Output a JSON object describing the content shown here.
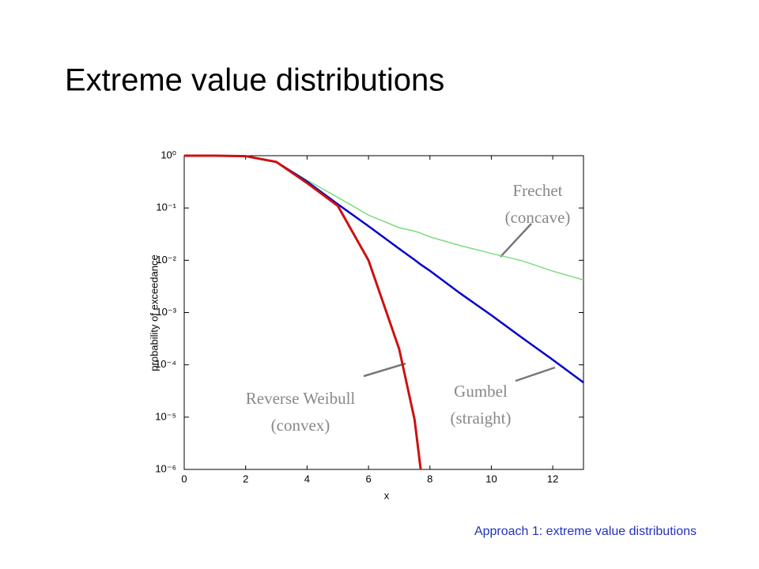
{
  "chart_data": {
    "type": "line",
    "title": "Extreme value distributions",
    "footer": "Approach 1: extreme value distributions",
    "xlabel": "x",
    "ylabel": "probability of exceedance",
    "log_y": true,
    "x": [
      0,
      1,
      2,
      3,
      4,
      5,
      6,
      7,
      7.5,
      7.7,
      8,
      9,
      10,
      11,
      12,
      13
    ],
    "series": [
      {
        "name": "Frechet",
        "color": "#7ddc7d",
        "values": [
          1,
          0.999,
          0.98,
          0.76,
          0.34,
          0.16,
          0.073,
          0.042,
          0.036,
          0.033,
          0.028,
          0.019,
          0.0135,
          0.0098,
          0.0062,
          0.0042
        ]
      },
      {
        "name": "Gumbel",
        "color": "#0000cc",
        "values": [
          1,
          0.999,
          0.98,
          0.76,
          0.32,
          0.118,
          0.045,
          0.0166,
          0.0102,
          0.0083,
          0.0063,
          0.0023,
          0.00089,
          0.00033,
          0.000125,
          4.6e-05
        ]
      },
      {
        "name": "Reverse Weibull",
        "color": "#cc1111",
        "values": [
          1,
          0.999,
          0.98,
          0.76,
          0.3,
          0.11,
          0.01,
          0.0002,
          9e-06,
          1e-06,
          null,
          null,
          null,
          null,
          null,
          null
        ]
      }
    ],
    "xlim": [
      0,
      13
    ],
    "ylim": [
      1e-06,
      1
    ],
    "xticks": [
      0,
      2,
      4,
      6,
      8,
      10,
      12
    ],
    "yticks": [
      {
        "value": 1,
        "label": "10⁰"
      },
      {
        "value": 0.1,
        "label": "10⁻¹"
      },
      {
        "value": 0.01,
        "label": "10⁻²"
      },
      {
        "value": 0.001,
        "label": "10⁻³"
      },
      {
        "value": 0.0001,
        "label": "10⁻⁴"
      },
      {
        "value": 1e-05,
        "label": "10⁻⁵"
      },
      {
        "value": 1e-06,
        "label": "10⁻⁶"
      }
    ],
    "annotations": [
      {
        "lines": [
          "Frechet",
          "(concave)"
        ]
      },
      {
        "lines": [
          "Reverse Weibull",
          "(convex)"
        ]
      },
      {
        "lines": [
          "Gumbel",
          "(straight)"
        ]
      }
    ]
  }
}
